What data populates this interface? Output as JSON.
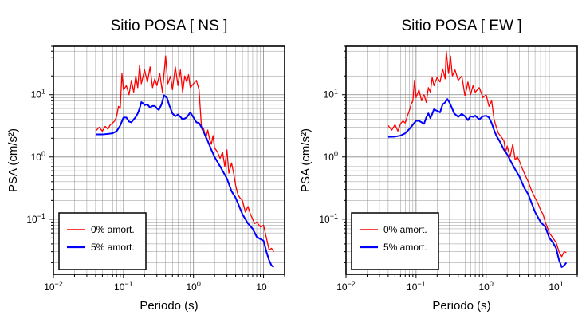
{
  "chart_data": [
    {
      "type": "line",
      "title": "Sitio POSA [ NS ]",
      "xlabel": "Periodo (s)",
      "ylabel": "PSA (cm/s²)",
      "xscale": "log",
      "yscale": "log",
      "xlim": [
        0.01,
        20
      ],
      "ylim": [
        0.013,
        60
      ],
      "grid": true,
      "legend_position": "bottom-left",
      "xticks": [
        {
          "v": 0.01,
          "base": "10",
          "exp": "−2"
        },
        {
          "v": 0.1,
          "base": "10",
          "exp": "−1"
        },
        {
          "v": 1,
          "base": "10",
          "exp": "0"
        },
        {
          "v": 10,
          "base": "10",
          "exp": "1"
        }
      ],
      "yticks": [
        {
          "v": 0.1,
          "base": "10",
          "exp": "−1"
        },
        {
          "v": 1,
          "base": "10",
          "exp": "0"
        },
        {
          "v": 10,
          "base": "10",
          "exp": "1"
        }
      ],
      "series": [
        {
          "name": "0% amort.",
          "color": "#ff0000",
          "points": [
            [
              0.04,
              2.6
            ],
            [
              0.045,
              3.0
            ],
            [
              0.05,
              2.6
            ],
            [
              0.055,
              3.1
            ],
            [
              0.06,
              2.8
            ],
            [
              0.065,
              3.3
            ],
            [
              0.07,
              3.5
            ],
            [
              0.075,
              3.8
            ],
            [
              0.08,
              4.5
            ],
            [
              0.085,
              6.5
            ],
            [
              0.09,
              6.0
            ],
            [
              0.095,
              22.0
            ],
            [
              0.1,
              12.0
            ],
            [
              0.11,
              14.0
            ],
            [
              0.12,
              10.0
            ],
            [
              0.13,
              17.0
            ],
            [
              0.14,
              11.0
            ],
            [
              0.15,
              20.0
            ],
            [
              0.16,
              13.0
            ],
            [
              0.17,
              30.0
            ],
            [
              0.18,
              15.0
            ],
            [
              0.2,
              25.0
            ],
            [
              0.22,
              16.0
            ],
            [
              0.24,
              28.0
            ],
            [
              0.26,
              13.0
            ],
            [
              0.28,
              18.0
            ],
            [
              0.3,
              14.0
            ],
            [
              0.33,
              22.0
            ],
            [
              0.36,
              11.0
            ],
            [
              0.4,
              42.0
            ],
            [
              0.43,
              15.0
            ],
            [
              0.47,
              20.0
            ],
            [
              0.5,
              12.0
            ],
            [
              0.55,
              28.0
            ],
            [
              0.6,
              14.0
            ],
            [
              0.65,
              25.0
            ],
            [
              0.7,
              11.0
            ],
            [
              0.75,
              20.0
            ],
            [
              0.8,
              16.0
            ],
            [
              0.85,
              21.0
            ],
            [
              0.9,
              13.0
            ],
            [
              1.0,
              15.0
            ],
            [
              1.1,
              17.0
            ],
            [
              1.2,
              12.0
            ],
            [
              1.3,
              3.0
            ],
            [
              1.4,
              2.8
            ],
            [
              1.5,
              2.0
            ],
            [
              1.6,
              2.7
            ],
            [
              1.7,
              1.9
            ],
            [
              1.8,
              1.6
            ],
            [
              1.9,
              2.2
            ],
            [
              2.0,
              1.4
            ],
            [
              2.2,
              1.2
            ],
            [
              2.4,
              0.95
            ],
            [
              2.6,
              1.2
            ],
            [
              2.8,
              0.7
            ],
            [
              3.0,
              1.3
            ],
            [
              3.2,
              0.55
            ],
            [
              3.5,
              0.8
            ],
            [
              3.8,
              0.5
            ],
            [
              4.0,
              0.35
            ],
            [
              4.3,
              0.25
            ],
            [
              4.6,
              0.22
            ],
            [
              5.0,
              0.2
            ],
            [
              5.5,
              0.13
            ],
            [
              6.0,
              0.16
            ],
            [
              6.5,
              0.12
            ],
            [
              7.0,
              0.1
            ],
            [
              7.5,
              0.085
            ],
            [
              8.0,
              0.09
            ],
            [
              9.0,
              0.075
            ],
            [
              10.0,
              0.08
            ],
            [
              11.0,
              0.05
            ],
            [
              12.0,
              0.032
            ],
            [
              13.0,
              0.034
            ],
            [
              14.0,
              0.03
            ]
          ]
        },
        {
          "name": "5% amort.",
          "color": "#0000ff",
          "points": [
            [
              0.04,
              2.3
            ],
            [
              0.05,
              2.3
            ],
            [
              0.06,
              2.35
            ],
            [
              0.07,
              2.4
            ],
            [
              0.08,
              2.6
            ],
            [
              0.09,
              3.2
            ],
            [
              0.1,
              4.3
            ],
            [
              0.11,
              4.3
            ],
            [
              0.12,
              3.7
            ],
            [
              0.13,
              3.6
            ],
            [
              0.14,
              4.0
            ],
            [
              0.15,
              4.4
            ],
            [
              0.16,
              5.0
            ],
            [
              0.17,
              6.0
            ],
            [
              0.18,
              7.6
            ],
            [
              0.19,
              7.3
            ],
            [
              0.2,
              6.8
            ],
            [
              0.22,
              7.0
            ],
            [
              0.24,
              6.2
            ],
            [
              0.26,
              6.6
            ],
            [
              0.28,
              6.6
            ],
            [
              0.3,
              6.0
            ],
            [
              0.32,
              5.7
            ],
            [
              0.35,
              7.0
            ],
            [
              0.38,
              9.8
            ],
            [
              0.42,
              8.8
            ],
            [
              0.45,
              6.8
            ],
            [
              0.5,
              5.0
            ],
            [
              0.55,
              4.5
            ],
            [
              0.6,
              4.8
            ],
            [
              0.65,
              4.4
            ],
            [
              0.7,
              4.0
            ],
            [
              0.8,
              4.3
            ],
            [
              0.9,
              5.2
            ],
            [
              1.0,
              4.3
            ],
            [
              1.1,
              3.6
            ],
            [
              1.2,
              3.5
            ],
            [
              1.3,
              3.0
            ],
            [
              1.4,
              2.5
            ],
            [
              1.6,
              1.8
            ],
            [
              1.8,
              1.3
            ],
            [
              2.0,
              1.0
            ],
            [
              2.5,
              0.65
            ],
            [
              3.0,
              0.45
            ],
            [
              3.5,
              0.28
            ],
            [
              4.0,
              0.22
            ],
            [
              5.0,
              0.12
            ],
            [
              6.0,
              0.085
            ],
            [
              7.0,
              0.07
            ],
            [
              8.0,
              0.052
            ],
            [
              9.0,
              0.048
            ],
            [
              10.0,
              0.045
            ],
            [
              11.0,
              0.03
            ],
            [
              12.0,
              0.022
            ],
            [
              13.0,
              0.018
            ],
            [
              14.0,
              0.017
            ]
          ]
        }
      ]
    },
    {
      "type": "line",
      "title": "Sitio POSA [ EW ]",
      "xlabel": "Periodo (s)",
      "ylabel": "PSA (cm/s²)",
      "xscale": "log",
      "yscale": "log",
      "xlim": [
        0.01,
        20
      ],
      "ylim": [
        0.013,
        60
      ],
      "grid": true,
      "legend_position": "bottom-left",
      "xticks": [
        {
          "v": 0.01,
          "base": "10",
          "exp": "−2"
        },
        {
          "v": 0.1,
          "base": "10",
          "exp": "−1"
        },
        {
          "v": 1,
          "base": "10",
          "exp": "0"
        },
        {
          "v": 10,
          "base": "10",
          "exp": "1"
        }
      ],
      "yticks": [
        {
          "v": 0.1,
          "base": "10",
          "exp": "−1"
        },
        {
          "v": 1,
          "base": "10",
          "exp": "0"
        },
        {
          "v": 10,
          "base": "10",
          "exp": "1"
        }
      ],
      "series": [
        {
          "name": "0% amort.",
          "color": "#ff0000",
          "points": [
            [
              0.04,
              3.2
            ],
            [
              0.045,
              2.7
            ],
            [
              0.05,
              3.3
            ],
            [
              0.055,
              2.6
            ],
            [
              0.06,
              3.4
            ],
            [
              0.065,
              3.8
            ],
            [
              0.07,
              3.5
            ],
            [
              0.075,
              4.5
            ],
            [
              0.08,
              5.5
            ],
            [
              0.085,
              7.0
            ],
            [
              0.09,
              8.0
            ],
            [
              0.095,
              17.0
            ],
            [
              0.1,
              9.0
            ],
            [
              0.11,
              12.0
            ],
            [
              0.12,
              8.0
            ],
            [
              0.13,
              10.0
            ],
            [
              0.14,
              7.5
            ],
            [
              0.15,
              13.0
            ],
            [
              0.16,
              11.0
            ],
            [
              0.17,
              19.0
            ],
            [
              0.18,
              14.0
            ],
            [
              0.2,
              19.0
            ],
            [
              0.22,
              16.0
            ],
            [
              0.24,
              26.0
            ],
            [
              0.26,
              18.0
            ],
            [
              0.27,
              50.0
            ],
            [
              0.29,
              22.0
            ],
            [
              0.31,
              42.0
            ],
            [
              0.33,
              20.0
            ],
            [
              0.36,
              25.0
            ],
            [
              0.4,
              17.0
            ],
            [
              0.45,
              20.0
            ],
            [
              0.5,
              9.5
            ],
            [
              0.55,
              16.0
            ],
            [
              0.6,
              10.0
            ],
            [
              0.65,
              14.0
            ],
            [
              0.7,
              11.0
            ],
            [
              0.8,
              13.0
            ],
            [
              0.9,
              9.0
            ],
            [
              1.0,
              10.0
            ],
            [
              1.1,
              6.5
            ],
            [
              1.2,
              8.0
            ],
            [
              1.3,
              4.0
            ],
            [
              1.4,
              3.0
            ],
            [
              1.5,
              2.4
            ],
            [
              1.7,
              2.0
            ],
            [
              1.8,
              1.8
            ],
            [
              1.9,
              1.2
            ],
            [
              2.0,
              1.5
            ],
            [
              2.2,
              1.0
            ],
            [
              2.4,
              1.6
            ],
            [
              2.6,
              0.9
            ],
            [
              2.8,
              1.0
            ],
            [
              3.0,
              0.85
            ],
            [
              3.2,
              0.7
            ],
            [
              3.5,
              0.55
            ],
            [
              4.0,
              0.4
            ],
            [
              4.5,
              0.28
            ],
            [
              5.0,
              0.22
            ],
            [
              5.5,
              0.18
            ],
            [
              6.0,
              0.14
            ],
            [
              6.5,
              0.12
            ],
            [
              7.0,
              0.09
            ],
            [
              8.0,
              0.06
            ],
            [
              9.0,
              0.05
            ],
            [
              10.0,
              0.042
            ],
            [
              11.0,
              0.03
            ],
            [
              12.0,
              0.025
            ],
            [
              13.0,
              0.03
            ],
            [
              14.0,
              0.029
            ]
          ]
        },
        {
          "name": "5% amort.",
          "color": "#0000ff",
          "points": [
            [
              0.04,
              2.1
            ],
            [
              0.05,
              2.12
            ],
            [
              0.06,
              2.2
            ],
            [
              0.07,
              2.4
            ],
            [
              0.08,
              2.8
            ],
            [
              0.09,
              3.3
            ],
            [
              0.1,
              3.8
            ],
            [
              0.11,
              3.8
            ],
            [
              0.12,
              3.6
            ],
            [
              0.13,
              3.4
            ],
            [
              0.14,
              4.3
            ],
            [
              0.15,
              5.0
            ],
            [
              0.16,
              4.2
            ],
            [
              0.17,
              4.9
            ],
            [
              0.18,
              5.8
            ],
            [
              0.2,
              5.5
            ],
            [
              0.22,
              5.2
            ],
            [
              0.24,
              7.0
            ],
            [
              0.26,
              7.5
            ],
            [
              0.28,
              8.5
            ],
            [
              0.3,
              7.5
            ],
            [
              0.32,
              6.4
            ],
            [
              0.35,
              5.0
            ],
            [
              0.4,
              4.4
            ],
            [
              0.45,
              4.9
            ],
            [
              0.5,
              4.5
            ],
            [
              0.55,
              3.9
            ],
            [
              0.6,
              4.5
            ],
            [
              0.65,
              4.4
            ],
            [
              0.7,
              4.6
            ],
            [
              0.8,
              4.0
            ],
            [
              0.9,
              4.5
            ],
            [
              1.0,
              4.6
            ],
            [
              1.1,
              4.3
            ],
            [
              1.2,
              3.5
            ],
            [
              1.3,
              2.7
            ],
            [
              1.4,
              2.2
            ],
            [
              1.6,
              1.7
            ],
            [
              1.8,
              1.3
            ],
            [
              2.0,
              1.1
            ],
            [
              2.5,
              0.68
            ],
            [
              3.0,
              0.48
            ],
            [
              3.5,
              0.32
            ],
            [
              4.0,
              0.25
            ],
            [
              5.0,
              0.13
            ],
            [
              6.0,
              0.09
            ],
            [
              7.0,
              0.075
            ],
            [
              8.0,
              0.05
            ],
            [
              9.0,
              0.042
            ],
            [
              10.0,
              0.034
            ],
            [
              11.0,
              0.022
            ],
            [
              12.0,
              0.017
            ],
            [
              13.0,
              0.018
            ],
            [
              14.0,
              0.02
            ]
          ]
        }
      ]
    }
  ]
}
